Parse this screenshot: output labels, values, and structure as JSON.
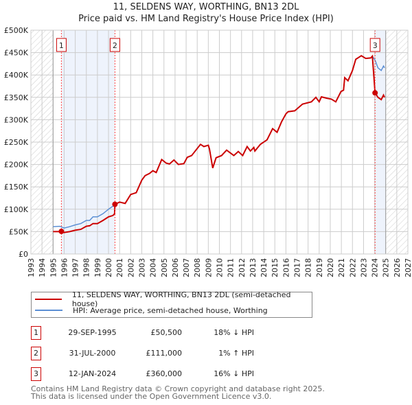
{
  "title": "11, SELDENS WAY, WORTHING, BN13 2DL",
  "subtitle": "Price paid vs. HM Land Registry's House Price Index (HPI)",
  "chart_data": {
    "type": "line",
    "title": "11, SELDENS WAY, WORTHING, BN13 2DL",
    "subtitle": "Price paid vs. HM Land Registry's House Price Index (HPI)",
    "xlim": [
      1993,
      2027
    ],
    "ylim": [
      0,
      500000
    ],
    "x_ticks": [
      "1993",
      "1994",
      "1995",
      "1996",
      "1997",
      "1998",
      "1999",
      "2000",
      "2001",
      "2002",
      "2003",
      "2004",
      "2005",
      "2006",
      "2007",
      "2008",
      "2009",
      "2010",
      "2011",
      "2012",
      "2013",
      "2014",
      "2015",
      "2016",
      "2017",
      "2018",
      "2019",
      "2020",
      "2021",
      "2022",
      "2023",
      "2024",
      "2025",
      "2026",
      "2027"
    ],
    "y_ticks": [
      {
        "v": 0,
        "label": "£0"
      },
      {
        "v": 50000,
        "label": "£50K"
      },
      {
        "v": 100000,
        "label": "£100K"
      },
      {
        "v": 150000,
        "label": "£150K"
      },
      {
        "v": 200000,
        "label": "£200K"
      },
      {
        "v": 250000,
        "label": "£250K"
      },
      {
        "v": 300000,
        "label": "£300K"
      },
      {
        "v": 350000,
        "label": "£350K"
      },
      {
        "v": 400000,
        "label": "£400K"
      },
      {
        "v": 450000,
        "label": "£450K"
      },
      {
        "v": 500000,
        "label": "£500K"
      }
    ],
    "grid": true,
    "hatched_ranges": [
      [
        1993,
        1995
      ],
      [
        2025,
        2027
      ]
    ],
    "shaded_ranges": [
      [
        1995.75,
        2000.58
      ],
      [
        2024.04,
        2025
      ]
    ],
    "series": [
      {
        "name": "11, SELDENS WAY, WORTHING, BN13 2DL (semi-detached house)",
        "color": "#cc0000",
        "points": [
          [
            1995,
            50
          ],
          [
            1995.6,
            50
          ],
          [
            1995.75,
            50.5
          ],
          [
            1996,
            48
          ],
          [
            1996.5,
            50
          ],
          [
            1997,
            53
          ],
          [
            1997.5,
            55
          ],
          [
            1998,
            62
          ],
          [
            1998.3,
            63
          ],
          [
            1998.6,
            68
          ],
          [
            1999,
            68
          ],
          [
            1999.5,
            75
          ],
          [
            2000,
            83
          ],
          [
            2000.4,
            86
          ],
          [
            2000.55,
            90
          ],
          [
            2000.58,
            111
          ],
          [
            2001,
            116
          ],
          [
            2001.5,
            113
          ],
          [
            2002,
            133
          ],
          [
            2002.5,
            137
          ],
          [
            2003,
            165
          ],
          [
            2003.3,
            175
          ],
          [
            2003.7,
            180
          ],
          [
            2004,
            186
          ],
          [
            2004.3,
            182
          ],
          [
            2004.8,
            211
          ],
          [
            2005.2,
            203
          ],
          [
            2005.5,
            201
          ],
          [
            2005.9,
            210
          ],
          [
            2006.3,
            200
          ],
          [
            2006.8,
            202
          ],
          [
            2007.1,
            216
          ],
          [
            2007.5,
            220
          ],
          [
            2008.3,
            245
          ],
          [
            2008.6,
            240
          ],
          [
            2009,
            243
          ],
          [
            2009.1,
            235
          ],
          [
            2009.4,
            192
          ],
          [
            2009.7,
            215
          ],
          [
            2010.2,
            220
          ],
          [
            2010.65,
            232
          ],
          [
            2011.3,
            220
          ],
          [
            2011.7,
            229
          ],
          [
            2012.1,
            220
          ],
          [
            2012.5,
            240
          ],
          [
            2012.8,
            230
          ],
          [
            2013.1,
            238
          ],
          [
            2013.2,
            230
          ],
          [
            2013.7,
            245
          ],
          [
            2014.3,
            255
          ],
          [
            2014.8,
            280
          ],
          [
            2015.2,
            272
          ],
          [
            2015.6,
            295
          ],
          [
            2016,
            313
          ],
          [
            2016.2,
            318
          ],
          [
            2016.8,
            320
          ],
          [
            2017.5,
            335
          ],
          [
            2018.3,
            340
          ],
          [
            2018.7,
            350
          ],
          [
            2019,
            340
          ],
          [
            2019.2,
            351
          ],
          [
            2019.7,
            348
          ],
          [
            2020.1,
            346
          ],
          [
            2020.5,
            340
          ],
          [
            2020.97,
            363
          ],
          [
            2021.2,
            366
          ],
          [
            2021.3,
            394
          ],
          [
            2021.6,
            387
          ],
          [
            2022,
            410
          ],
          [
            2022.3,
            435
          ],
          [
            2022.8,
            443
          ],
          [
            2023.2,
            437
          ],
          [
            2023.65,
            438
          ],
          [
            2023.8,
            442
          ],
          [
            2024.04,
            360
          ],
          [
            2024.3,
            350
          ],
          [
            2024.6,
            345
          ],
          [
            2024.8,
            355
          ],
          [
            2024.9,
            350
          ]
        ]
      },
      {
        "name": "HPI: Average price, semi-detached house, Worthing",
        "color": "#5b8fd4",
        "points": [
          [
            1995,
            61
          ],
          [
            1995.6,
            62
          ],
          [
            1996,
            58
          ],
          [
            1996.5,
            61
          ],
          [
            1997,
            65
          ],
          [
            1997.5,
            68
          ],
          [
            1998,
            75
          ],
          [
            1998.3,
            75
          ],
          [
            1998.6,
            83
          ],
          [
            1999,
            83
          ],
          [
            1999.5,
            90
          ],
          [
            2000,
            100
          ],
          [
            2000.58,
            110
          ],
          [
            2001,
            116
          ],
          [
            2001.5,
            113
          ],
          [
            2002,
            133
          ],
          [
            2002.5,
            137
          ],
          [
            2003,
            165
          ],
          [
            2003.3,
            175
          ],
          [
            2003.7,
            180
          ],
          [
            2004,
            186
          ],
          [
            2004.3,
            182
          ],
          [
            2004.8,
            211
          ],
          [
            2005.2,
            203
          ],
          [
            2005.5,
            201
          ],
          [
            2005.9,
            210
          ],
          [
            2006.3,
            200
          ],
          [
            2006.8,
            202
          ],
          [
            2007.1,
            216
          ],
          [
            2007.5,
            220
          ],
          [
            2008.3,
            245
          ],
          [
            2008.6,
            240
          ],
          [
            2009,
            243
          ],
          [
            2009.1,
            235
          ],
          [
            2009.4,
            192
          ],
          [
            2009.7,
            215
          ],
          [
            2010.2,
            220
          ],
          [
            2010.65,
            232
          ],
          [
            2011.3,
            220
          ],
          [
            2011.7,
            229
          ],
          [
            2012.1,
            220
          ],
          [
            2012.5,
            240
          ],
          [
            2012.8,
            230
          ],
          [
            2013.1,
            238
          ],
          [
            2013.2,
            230
          ],
          [
            2013.7,
            245
          ],
          [
            2014.3,
            255
          ],
          [
            2014.8,
            280
          ],
          [
            2015.2,
            272
          ],
          [
            2015.6,
            295
          ],
          [
            2016,
            313
          ],
          [
            2016.2,
            318
          ],
          [
            2016.8,
            320
          ],
          [
            2017.5,
            335
          ],
          [
            2018.3,
            340
          ],
          [
            2018.7,
            350
          ],
          [
            2019,
            340
          ],
          [
            2019.2,
            351
          ],
          [
            2019.7,
            348
          ],
          [
            2020.1,
            346
          ],
          [
            2020.5,
            340
          ],
          [
            2020.97,
            363
          ],
          [
            2021.2,
            366
          ],
          [
            2021.3,
            394
          ],
          [
            2021.6,
            387
          ],
          [
            2022,
            410
          ],
          [
            2022.3,
            435
          ],
          [
            2022.8,
            443
          ],
          [
            2023.2,
            437
          ],
          [
            2023.65,
            438
          ],
          [
            2023.8,
            442
          ],
          [
            2024.06,
            432
          ],
          [
            2024.3,
            416
          ],
          [
            2024.6,
            410
          ],
          [
            2024.8,
            420
          ],
          [
            2024.9,
            416
          ]
        ]
      }
    ],
    "sales": [
      {
        "label": "1",
        "x": 1995.75,
        "value": 50500
      },
      {
        "label": "2",
        "x": 2000.58,
        "value": 111000
      },
      {
        "label": "3",
        "x": 2024.04,
        "value": 360000
      }
    ]
  },
  "legend": {
    "property": "11, SELDENS WAY, WORTHING, BN13 2DL (semi-detached house)",
    "hpi": "HPI: Average price, semi-detached house, Worthing"
  },
  "transactions": [
    {
      "num": "1",
      "date": "29-SEP-1995",
      "price": "£50,500",
      "hpi": "18% ↓ HPI"
    },
    {
      "num": "2",
      "date": "31-JUL-2000",
      "price": "£111,000",
      "hpi": "1% ↑ HPI"
    },
    {
      "num": "3",
      "date": "12-JAN-2024",
      "price": "£360,000",
      "hpi": "16% ↓ HPI"
    }
  ],
  "footer": {
    "line1": "Contains HM Land Registry data © Crown copyright and database right 2025.",
    "line2": "This data is licensed under the Open Government Licence v3.0."
  }
}
